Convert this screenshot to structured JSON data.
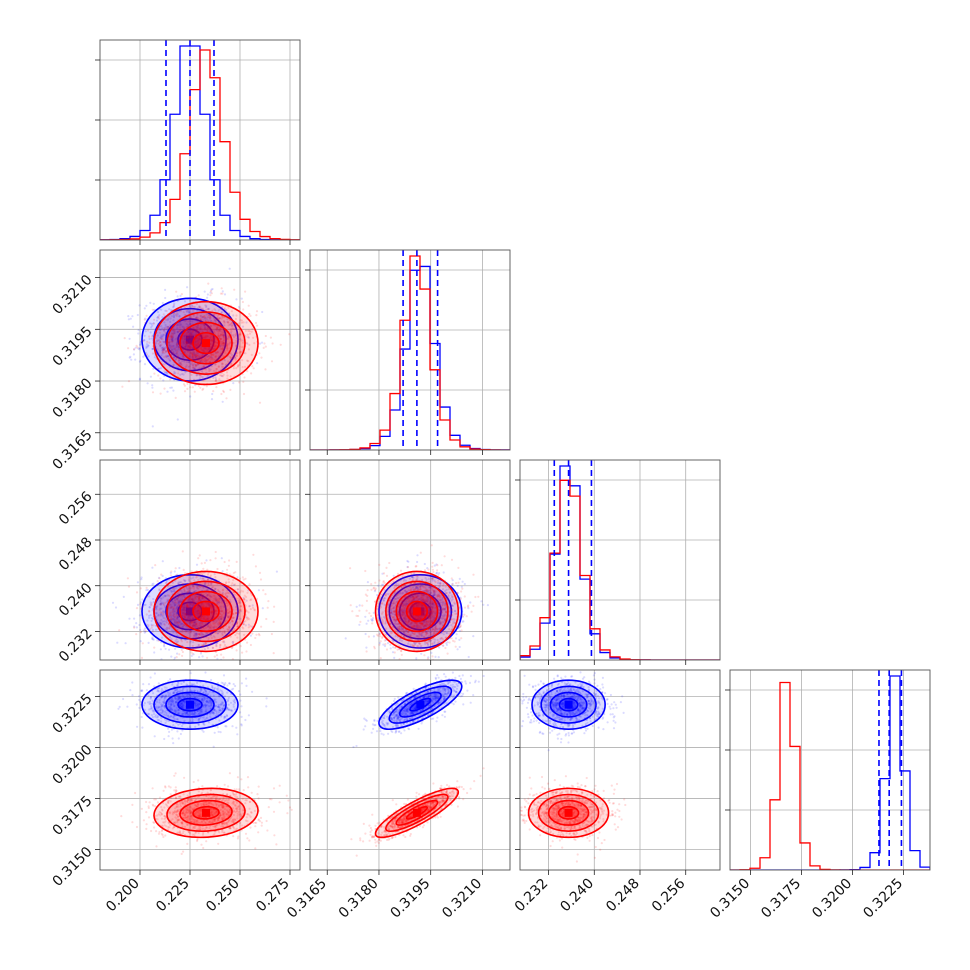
{
  "chart_data": {
    "type": "scatter",
    "kind": "corner-plot",
    "parameters": 4,
    "series": [
      {
        "color": "#0000ff",
        "center": [
          0.225,
          0.3192,
          0.2355,
          0.3221
        ],
        "sd": [
          0.012,
          0.0006,
          0.0032,
          0.0006
        ],
        "corr": {
          "0-1": 0.0,
          "0-2": 0.0,
          "1-2": 0.0,
          "0-3": 0.0,
          "1-3": 0.75,
          "2-3": 0.0
        },
        "quantiles": [
          [
            0.213,
            0.225,
            0.237
          ],
          [
            0.3187,
            0.3191,
            0.3197
          ],
          [
            0.233,
            0.2355,
            0.2395
          ],
          [
            0.3213,
            0.3218,
            0.3224
          ]
        ]
      },
      {
        "color": "#ff0000",
        "center": [
          0.233,
          0.3191,
          0.2355,
          0.3168
        ],
        "sd": [
          0.013,
          0.0006,
          0.0035,
          0.0006
        ],
        "corr": {
          "0-1": 0.0,
          "0-2": 0.0,
          "1-2": 0.0,
          "0-3": 0.1,
          "1-3": 0.85,
          "2-3": 0.0
        }
      }
    ],
    "axes": [
      {
        "range": [
          0.18,
          0.28
        ],
        "ticks": [
          "0.200",
          "0.225",
          "0.250",
          "0.275"
        ],
        "tick_values": [
          0.2,
          0.225,
          0.25,
          0.275
        ]
      },
      {
        "range": [
          0.316,
          0.3218
        ],
        "ticks": [
          "0.3165",
          "0.3180",
          "0.3195",
          "0.3210"
        ],
        "tick_values": [
          0.3165,
          0.318,
          0.3195,
          0.321
        ]
      },
      {
        "range": [
          0.227,
          0.262
        ],
        "ticks": [
          "0.232",
          "0.240",
          "0.248",
          "0.256"
        ],
        "tick_values": [
          0.232,
          0.24,
          0.248,
          0.256
        ]
      },
      {
        "range": [
          0.314,
          0.3238
        ],
        "ticks": [
          "0.3150",
          "0.3175",
          "0.3200",
          "0.3225"
        ],
        "tick_values": [
          0.315,
          0.3175,
          0.32,
          0.3225
        ]
      }
    ],
    "grid": true,
    "title": "",
    "xlabel": "",
    "ylabel": ""
  }
}
